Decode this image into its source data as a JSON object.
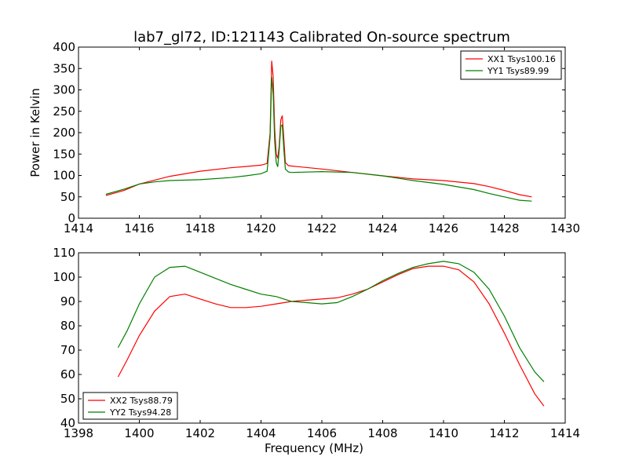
{
  "figure_title": "lab7_gl72, ID:121143 Calibrated On-source spectrum",
  "chart_data": [
    {
      "type": "line",
      "title": "lab7_gl72, ID:121143 Calibrated On-source spectrum",
      "xlabel": "",
      "ylabel": "Power in Kelvin",
      "xlim": [
        1414,
        1430
      ],
      "ylim": [
        0,
        400
      ],
      "xticks": [
        "1414",
        "1416",
        "1418",
        "1420",
        "1422",
        "1424",
        "1426",
        "1428",
        "1430"
      ],
      "yticks": [
        "0",
        "50",
        "100",
        "150",
        "200",
        "250",
        "300",
        "350",
        "400"
      ],
      "grid": false,
      "legend_position": "top-right",
      "series": [
        {
          "name": "XX1 Tsys100.16",
          "color": "#ff0000",
          "x": [
            1414.9,
            1415.5,
            1416,
            1417,
            1418,
            1419,
            1419.5,
            1420,
            1420.2,
            1420.3,
            1420.35,
            1420.4,
            1420.45,
            1420.5,
            1420.55,
            1420.6,
            1420.65,
            1420.7,
            1420.75,
            1420.8,
            1420.9,
            1421,
            1422,
            1423,
            1424,
            1425,
            1426,
            1427,
            1427.5,
            1428,
            1428.5,
            1428.9
          ],
          "y": [
            53,
            65,
            80,
            98,
            110,
            118,
            121,
            124,
            128,
            200,
            368,
            330,
            210,
            150,
            140,
            170,
            230,
            240,
            185,
            130,
            123,
            122,
            115,
            107,
            99,
            92,
            88,
            81,
            74,
            65,
            55,
            50
          ]
        },
        {
          "name": "YY1 Tsys89.99",
          "color": "#008000",
          "x": [
            1414.9,
            1415.5,
            1416,
            1416.5,
            1417,
            1418,
            1419,
            1419.5,
            1420,
            1420.2,
            1420.3,
            1420.35,
            1420.4,
            1420.45,
            1420.5,
            1420.55,
            1420.6,
            1420.65,
            1420.7,
            1420.75,
            1420.8,
            1420.9,
            1421,
            1422,
            1423,
            1424,
            1425,
            1426,
            1427,
            1427.5,
            1428,
            1428.5,
            1428.9
          ],
          "y": [
            56,
            68,
            80,
            85,
            88,
            90,
            95,
            99,
            104,
            110,
            190,
            330,
            290,
            180,
            130,
            120,
            160,
            215,
            218,
            160,
            115,
            108,
            107,
            109,
            107,
            99,
            88,
            79,
            67,
            58,
            50,
            42,
            40
          ]
        }
      ]
    },
    {
      "type": "line",
      "title": "",
      "xlabel": "Frequency (MHz)",
      "ylabel": "",
      "xlim": [
        1398,
        1414
      ],
      "ylim": [
        40,
        110
      ],
      "xticks": [
        "1398",
        "1400",
        "1402",
        "1404",
        "1406",
        "1408",
        "1410",
        "1412",
        "1414"
      ],
      "yticks": [
        "40",
        "50",
        "60",
        "70",
        "80",
        "90",
        "100",
        "110"
      ],
      "grid": false,
      "legend_position": "bottom-left",
      "series": [
        {
          "name": "XX2 Tsys88.79",
          "color": "#ff0000",
          "x": [
            1399.3,
            1399.6,
            1400,
            1400.5,
            1401,
            1401.5,
            1402,
            1402.5,
            1403,
            1403.5,
            1404,
            1404.5,
            1405,
            1405.5,
            1406,
            1406.5,
            1407,
            1407.5,
            1408,
            1408.5,
            1409,
            1409.5,
            1410,
            1410.5,
            1411,
            1411.5,
            1412,
            1412.5,
            1413,
            1413.3
          ],
          "y": [
            59,
            66,
            76,
            86,
            92,
            93,
            91,
            89,
            87.5,
            87.5,
            88,
            89,
            90,
            90.5,
            91,
            91.5,
            93,
            95,
            98,
            101,
            103.5,
            104.5,
            104.5,
            103,
            98,
            89,
            77,
            64,
            52,
            47
          ]
        },
        {
          "name": "YY2 Tsys94.28",
          "color": "#008000",
          "x": [
            1399.3,
            1399.6,
            1400,
            1400.5,
            1401,
            1401.5,
            1402,
            1402.5,
            1403,
            1403.5,
            1404,
            1404.5,
            1405,
            1405.5,
            1406,
            1406.5,
            1407,
            1407.5,
            1408,
            1408.5,
            1409,
            1409.5,
            1410,
            1410.5,
            1411,
            1411.5,
            1412,
            1412.5,
            1413,
            1413.3
          ],
          "y": [
            71,
            78,
            89,
            100,
            104,
            104.5,
            102,
            99.5,
            97,
            95,
            93,
            92,
            90,
            89.5,
            89,
            89.5,
            92,
            95,
            98.5,
            101.5,
            104,
            105.5,
            106.5,
            105.5,
            102,
            95,
            84,
            71,
            61,
            57
          ]
        }
      ]
    }
  ]
}
